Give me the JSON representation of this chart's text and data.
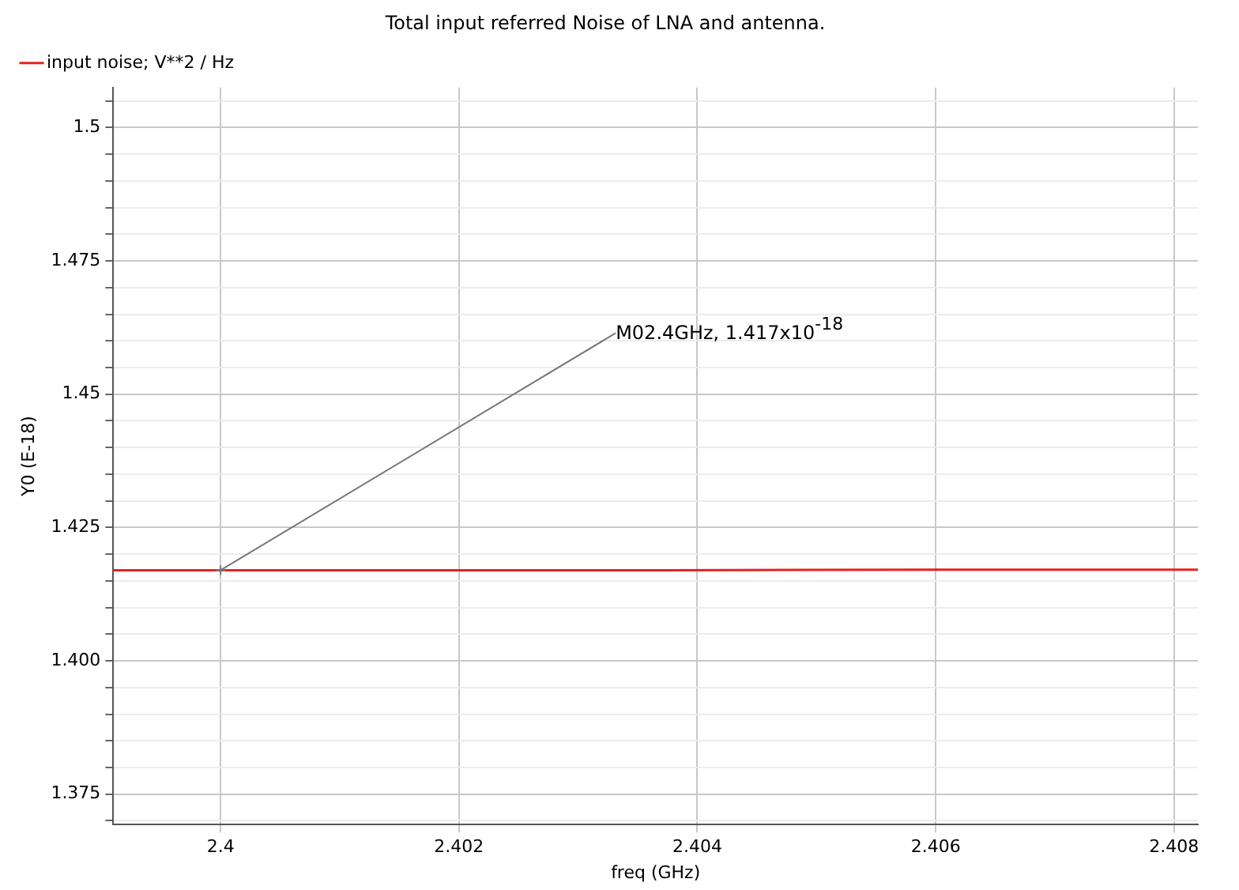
{
  "chart_data": {
    "type": "line",
    "title": "Total input referred Noise of LNA and antenna.",
    "xlabel": "freq (GHz)",
    "ylabel": "Y0 (E-18)",
    "x": [
      2.3991,
      2.4,
      2.4014,
      2.4037,
      2.406,
      2.4082
    ],
    "series": [
      {
        "name": "input noise; V**2 / Hz",
        "color": "#e8221c",
        "values": [
          1.417,
          1.417,
          1.417,
          1.417,
          1.4171,
          1.4171
        ]
      }
    ],
    "xlim": [
      2.3991,
      2.4082
    ],
    "xticks": [
      2.4,
      2.402,
      2.404,
      2.406,
      2.408
    ],
    "ylim": [
      1.3693,
      1.5075
    ],
    "yticks": [
      {
        "value": 1.37,
        "label": null
      },
      1.375,
      {
        "value": 1.38,
        "label": null
      },
      {
        "value": 1.385,
        "label": null
      },
      {
        "value": 1.39,
        "label": null
      },
      {
        "value": 1.395,
        "label": null
      },
      {
        "value": 1.4,
        "label": "1.400"
      },
      {
        "value": 1.405,
        "label": null
      },
      {
        "value": 1.41,
        "label": null
      },
      {
        "value": 1.415,
        "label": null
      },
      {
        "value": 1.42,
        "label": null
      },
      1.425,
      {
        "value": 1.43,
        "label": null
      },
      {
        "value": 1.435,
        "label": null
      },
      {
        "value": 1.44,
        "label": null
      },
      {
        "value": 1.445,
        "label": null
      },
      1.45,
      {
        "value": 1.455,
        "label": null
      },
      {
        "value": 1.46,
        "label": null
      },
      {
        "value": 1.465,
        "label": null
      },
      {
        "value": 1.47,
        "label": null
      },
      1.475,
      {
        "value": 1.48,
        "label": null
      },
      {
        "value": 1.485,
        "label": null
      },
      {
        "value": 1.49,
        "label": null
      },
      {
        "value": 1.495,
        "label": null
      },
      1.5,
      {
        "value": 1.505,
        "label": null
      }
    ],
    "annotations": [
      {
        "text": "M02.4GHz, 1.417x10$^{-18}$",
        "x": 2.4,
        "y": 1.417
      }
    ],
    "grid": true,
    "legend": "top left",
    "marker": "none",
    "line_style": "solid"
  }
}
